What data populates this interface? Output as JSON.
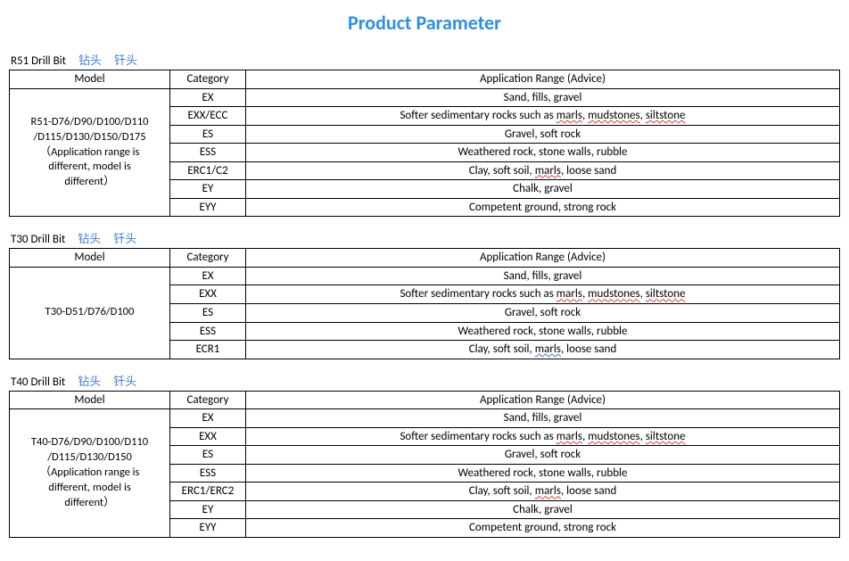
{
  "title": {
    "text": "Product Parameter",
    "color": "#2f8fe0"
  },
  "columns": {
    "model": "Model",
    "category": "Category",
    "range": "Application Range (Advice)"
  },
  "cn": {
    "zuantou": "钻头",
    "qiantou": "钎头"
  },
  "underline": {
    "marls": "marls",
    "mudstones": "mudstones",
    "siltstone": "siltstone"
  },
  "sections": [
    {
      "id": "r51",
      "heading": "R51 Drill Bit",
      "model_lines": [
        "R51-D76/D90/D100/D110",
        "/D115/D130/D150/D175",
        "（Application range is",
        "different, model is",
        "different）"
      ],
      "rows": [
        {
          "cat": "EX",
          "range": "Sand, fills, gravel"
        },
        {
          "cat": "EXX/ECC",
          "range_html": "Softer sedimentary rocks such as <span class='wavy r'>marls</span>, <span class='wavy r'>mudstones</span>, <span class='wavy r'>siltstone</span>"
        },
        {
          "cat": "ES",
          "range": "Gravel, soft rock"
        },
        {
          "cat": "ESS",
          "range": "Weathered rock, stone walls, rubble"
        },
        {
          "cat": "ERC1/C2",
          "range_html": "Clay, soft soil, <span class='wavy r'>marls</span>, loose sand"
        },
        {
          "cat": "EY",
          "range": "Chalk, gravel"
        },
        {
          "cat": "EYY",
          "range": "Competent ground, strong rock"
        }
      ]
    },
    {
      "id": "t30",
      "heading": "T30 Drill Bit",
      "model_lines": [
        "T30-D51/D76/D100"
      ],
      "rows": [
        {
          "cat": "EX",
          "range": "Sand, fills, gravel"
        },
        {
          "cat": "EXX",
          "range_html": "Softer sedimentary rocks such as <span class='wavy r'>marls</span>, <span class='wavy r'>mudstones</span>, <span class='wavy r'>siltstone</span>"
        },
        {
          "cat": "ES",
          "range": "Gravel, soft rock"
        },
        {
          "cat": "ESS",
          "range": "Weathered rock, stone walls, rubble"
        },
        {
          "cat": "ECR1",
          "range_html": "Clay, soft soil, <span class='wavy b'>marls</span>, loose sand"
        }
      ]
    },
    {
      "id": "t40",
      "heading": "T40 Drill Bit",
      "model_lines": [
        "T40-D76/D90/D100/D110",
        "/D115/D130/D150",
        "（Application range is",
        "different, model is",
        "different）"
      ],
      "rows": [
        {
          "cat": "EX",
          "range": "Sand, fills, gravel"
        },
        {
          "cat": "EXX",
          "range_html": "Softer sedimentary rocks such as <span class='wavy r'>marls</span>, <span class='wavy r'>mudstones</span>, <span class='wavy r'>siltstone</span>"
        },
        {
          "cat": "ES",
          "range": "Gravel, soft rock"
        },
        {
          "cat": "ESS",
          "range": "Weathered rock, stone walls, rubble"
        },
        {
          "cat": "ERC1/ERC2",
          "range_html": "Clay, soft soil, <span class='wavy r'>marls</span>, loose sand"
        },
        {
          "cat": "EY",
          "range": "Chalk, gravel"
        },
        {
          "cat": "EYY",
          "range": "Competent ground, strong rock"
        }
      ]
    }
  ]
}
